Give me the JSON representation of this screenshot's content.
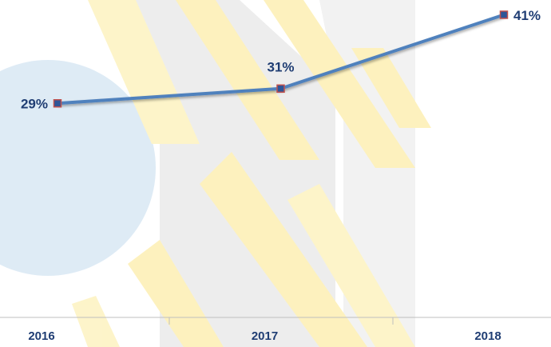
{
  "chart_data": {
    "type": "line",
    "categories": [
      "2016",
      "2017",
      "2018"
    ],
    "series": [
      {
        "color": "#4f81bd",
        "values": [
          29,
          31,
          41
        ],
        "value_labels": [
          "29%",
          "31%",
          "41%"
        ]
      }
    ],
    "ylim": [
      0,
      43
    ]
  }
}
